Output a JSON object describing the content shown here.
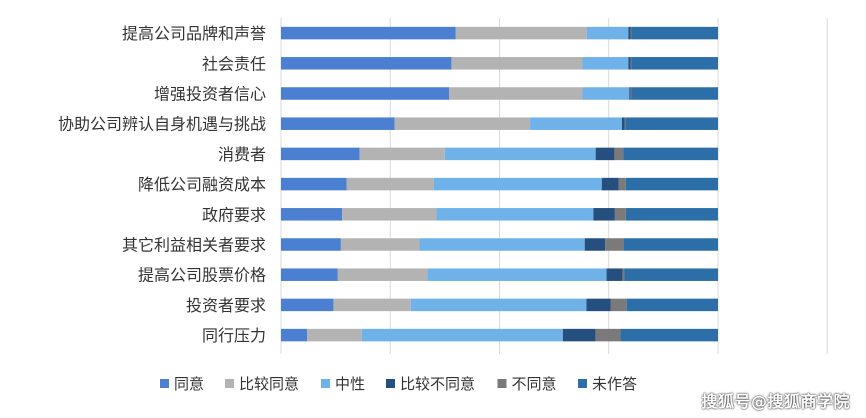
{
  "chart_data": {
    "type": "bar",
    "orientation": "horizontal",
    "stacked": true,
    "percent_stacked": true,
    "categories": [
      "提高公司品牌和声誉",
      "社会责任",
      "增强投资者信心",
      "协助公司辨认自身机遇与挑战",
      "消费者",
      "降低公司融资成本",
      "政府要求",
      "其它利益相关者要求",
      "提高公司股票价格",
      "投资者要求",
      "同行压力"
    ],
    "series": [
      {
        "name": "同意",
        "color": "#4a7fd1",
        "values": [
          0.4,
          0.39,
          0.385,
          0.26,
          0.18,
          0.15,
          0.14,
          0.137,
          0.13,
          0.12,
          0.06
        ]
      },
      {
        "name": "比较同意",
        "color": "#b3b3b3",
        "values": [
          0.3,
          0.3,
          0.305,
          0.31,
          0.195,
          0.2,
          0.216,
          0.18,
          0.205,
          0.177,
          0.125
        ]
      },
      {
        "name": "中性",
        "color": "#6fb2ea",
        "values": [
          0.095,
          0.105,
          0.107,
          0.21,
          0.345,
          0.384,
          0.359,
          0.378,
          0.41,
          0.402,
          0.46
        ]
      },
      {
        "name": "比较不同意",
        "color": "#244f7f",
        "values": [
          0.005,
          0.005,
          0.003,
          0.006,
          0.043,
          0.039,
          0.049,
          0.047,
          0.037,
          0.055,
          0.075
        ]
      },
      {
        "name": "不同意",
        "color": "#7a7a7a",
        "values": [
          0.002,
          0.002,
          0.002,
          0.002,
          0.02,
          0.016,
          0.025,
          0.042,
          0.004,
          0.037,
          0.057
        ]
      },
      {
        "name": "未作答",
        "color": "#2c6fa8",
        "values": [
          0.198,
          0.198,
          0.198,
          0.212,
          0.217,
          0.211,
          0.211,
          0.216,
          0.214,
          0.209,
          0.223
        ]
      }
    ],
    "xlim": [
      0,
      1.25
    ],
    "grid": true,
    "legend": "bottom"
  },
  "watermark": "搜狐号@搜狐商学院"
}
